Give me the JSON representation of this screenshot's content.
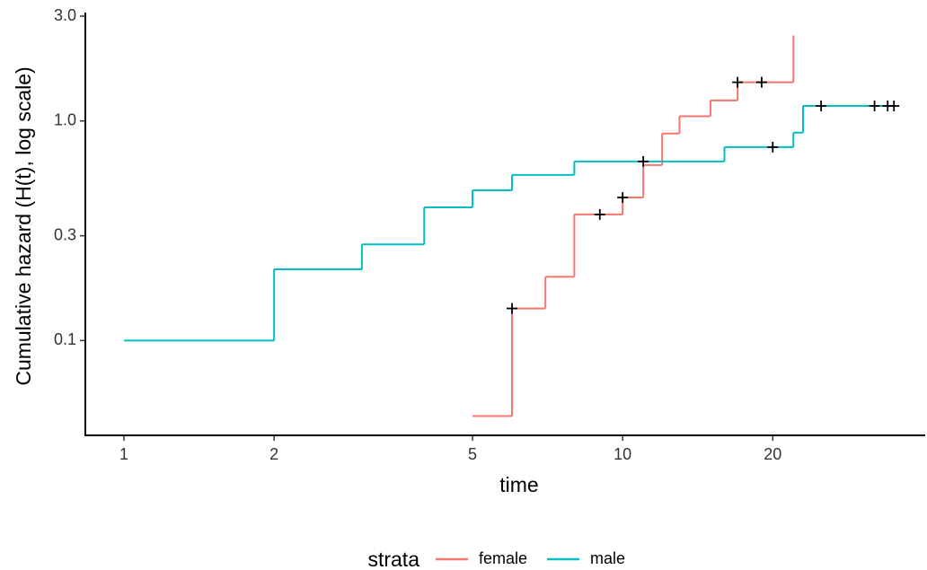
{
  "chart_data": {
    "type": "step",
    "x_label": "time",
    "y_label": "Cumulative hazard (H(t), log scale)",
    "legend_title": "strata",
    "legend_position": "bottom",
    "xscale": "log",
    "yscale": "log",
    "xlim": [
      0.84,
      36
    ],
    "ylim": [
      0.037,
      3.0
    ],
    "xticks": [
      1,
      2,
      5,
      10,
      20
    ],
    "yticks": [
      0.1,
      0.3,
      {
        "value": 1.0,
        "label": "1.0"
      },
      {
        "value": 3.0,
        "label": "3.0"
      }
    ],
    "series": [
      {
        "name": "female",
        "color": "#F8766D",
        "x": [
          5,
          6,
          7,
          8,
          10,
          11,
          12,
          13,
          15,
          17,
          22
        ],
        "values": [
          0.0453,
          0.14,
          0.195,
          0.375,
          0.448,
          0.63,
          0.876,
          1.05,
          1.24,
          1.5,
          2.45
        ],
        "censor_x": [
          6,
          9,
          10,
          17,
          19
        ],
        "censor_values": [
          0.14,
          0.375,
          0.448,
          1.5,
          1.5
        ]
      },
      {
        "name": "male",
        "color": "#00BFC4",
        "x": [
          1,
          2,
          3,
          4,
          5,
          6,
          8,
          16,
          22,
          23,
          35
        ],
        "values": [
          0.1,
          0.211,
          0.274,
          0.404,
          0.483,
          0.568,
          0.654,
          0.76,
          0.885,
          1.17,
          1.17
        ],
        "censor_x": [
          11,
          20,
          25,
          32,
          34,
          35
        ],
        "censor_values": [
          0.654,
          0.76,
          1.17,
          1.17,
          1.17,
          1.17
        ]
      }
    ]
  }
}
